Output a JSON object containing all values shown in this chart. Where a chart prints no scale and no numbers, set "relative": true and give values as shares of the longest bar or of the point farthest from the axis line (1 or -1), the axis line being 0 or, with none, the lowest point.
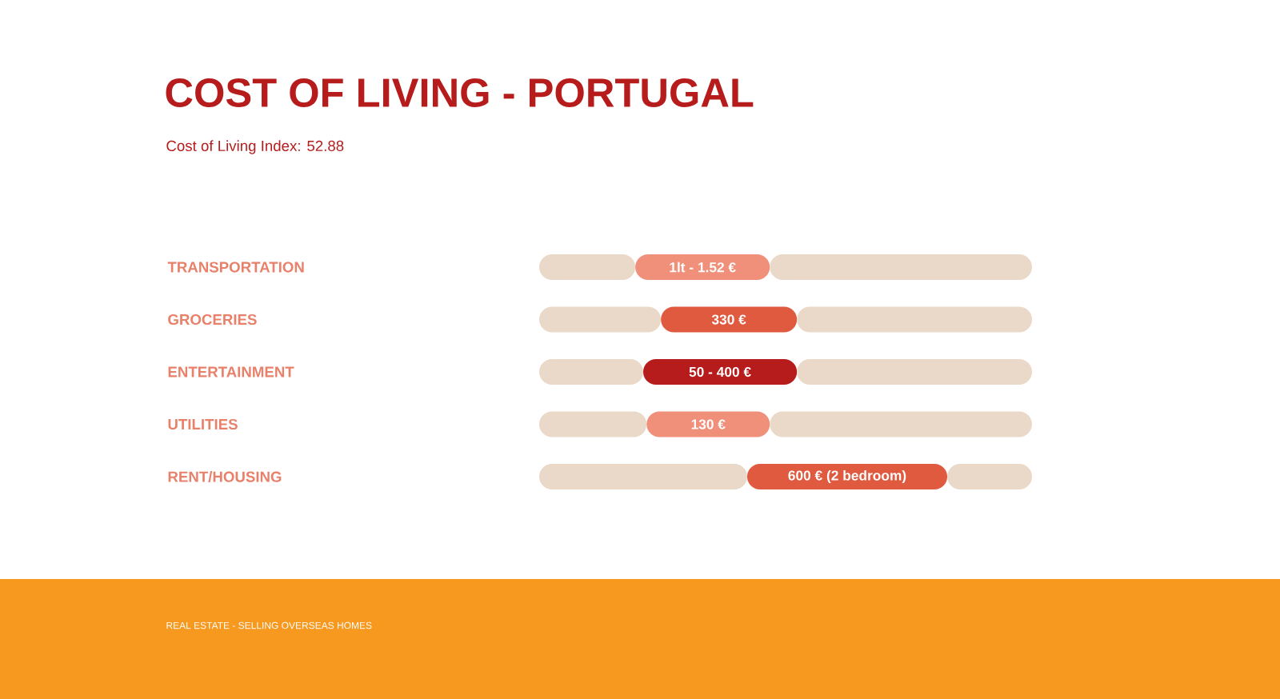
{
  "chart_data": {
    "type": "bar",
    "orientation": "horizontal",
    "relative": true,
    "stacked": true,
    "title": "COST OF LIVING - PORTUGAL",
    "subtitle": "Cost of Living Index: 52.88",
    "categories": [
      "TRANSPORTATION",
      "GROCERIES",
      "ENTERTAINMENT",
      "UTILITIES",
      "RENT/HOUSING"
    ],
    "series": [
      {
        "color": "#ead8c8",
        "values": [
          0.195,
          0.247,
          0.211,
          0.218,
          0.422
        ]
      },
      {
        "colors": [
          "#f0907a",
          "#e05a40",
          "#b71c1c",
          "#f0907a",
          "#e05a40"
        ],
        "values": [
          0.273,
          0.276,
          0.312,
          0.25,
          0.406
        ]
      },
      {
        "color": "#ead8c8",
        "values": [
          0.532,
          0.477,
          0.477,
          0.532,
          0.172
        ]
      }
    ],
    "annotations": [
      "1lt - 1.52 €",
      "330 €",
      "50 - 400 €",
      "130 €",
      "600 € (2 bedroom)",
      "REAL ESTATE - SELLING OVERSEAS HOMES"
    ]
  }
}
